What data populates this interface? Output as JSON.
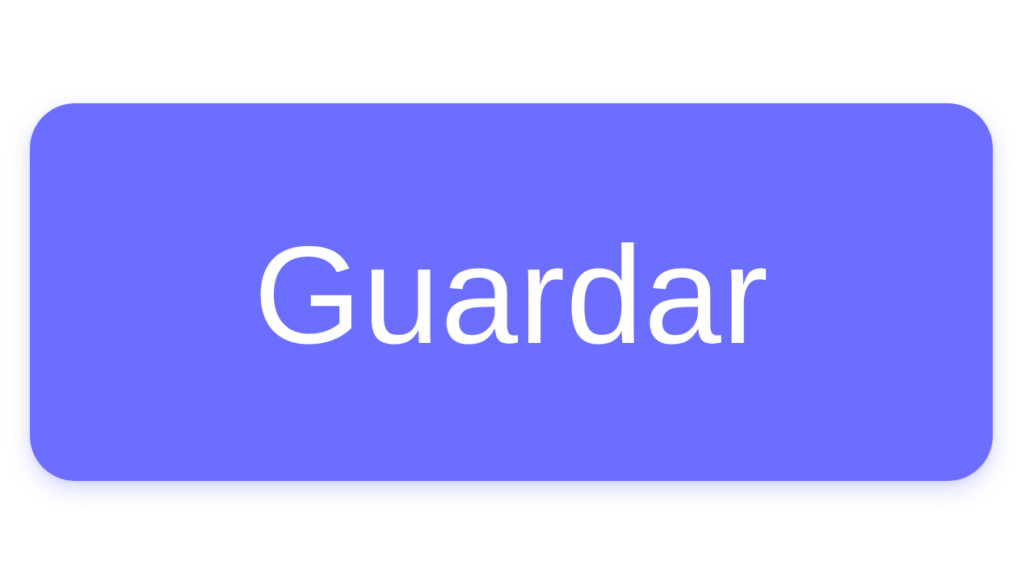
{
  "button": {
    "label": "Guardar",
    "background_color": "#6b6eff",
    "text_color": "#ffffff"
  }
}
